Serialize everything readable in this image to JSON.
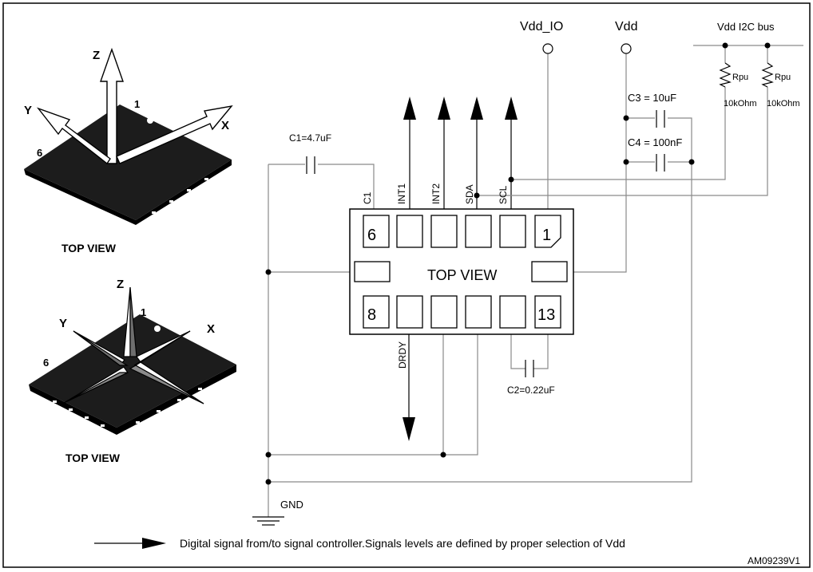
{
  "package_views": {
    "top": {
      "axis_z": "Z",
      "axis_y": "Y",
      "axis_x": "X",
      "pin1": "1",
      "pin6": "6",
      "caption": "TOP VIEW"
    },
    "bottom": {
      "axis_z": "Z",
      "axis_y": "Y",
      "axis_x": "X",
      "pin1": "1",
      "pin6": "6",
      "caption": "TOP VIEW"
    }
  },
  "supplies": {
    "vdd_io": "Vdd_IO",
    "vdd": "Vdd",
    "vdd_i2c": "Vdd I2C bus"
  },
  "resistors": [
    {
      "name": "Rpu",
      "value": "10kOhm"
    },
    {
      "name": "Rpu",
      "value": "10kOhm"
    }
  ],
  "capacitors": {
    "c1": "C1=4.7uF",
    "c2": "C2=0.22uF",
    "c3": "C3 = 10uF",
    "c4": "C4 = 100nF"
  },
  "pins": {
    "top_labels": [
      "C1",
      "INT1",
      "INT2",
      "SDA",
      "SCL"
    ],
    "bottom_label": "DRDY",
    "pin6": "6",
    "pin1": "1",
    "pin8": "8",
    "pin13": "13"
  },
  "chip_label": "TOP VIEW",
  "ground_label": "GND",
  "legend_text": "Digital signal from/to signal controller.Signals levels are defined by proper selection of Vdd",
  "figure_code": "AM09239V1"
}
